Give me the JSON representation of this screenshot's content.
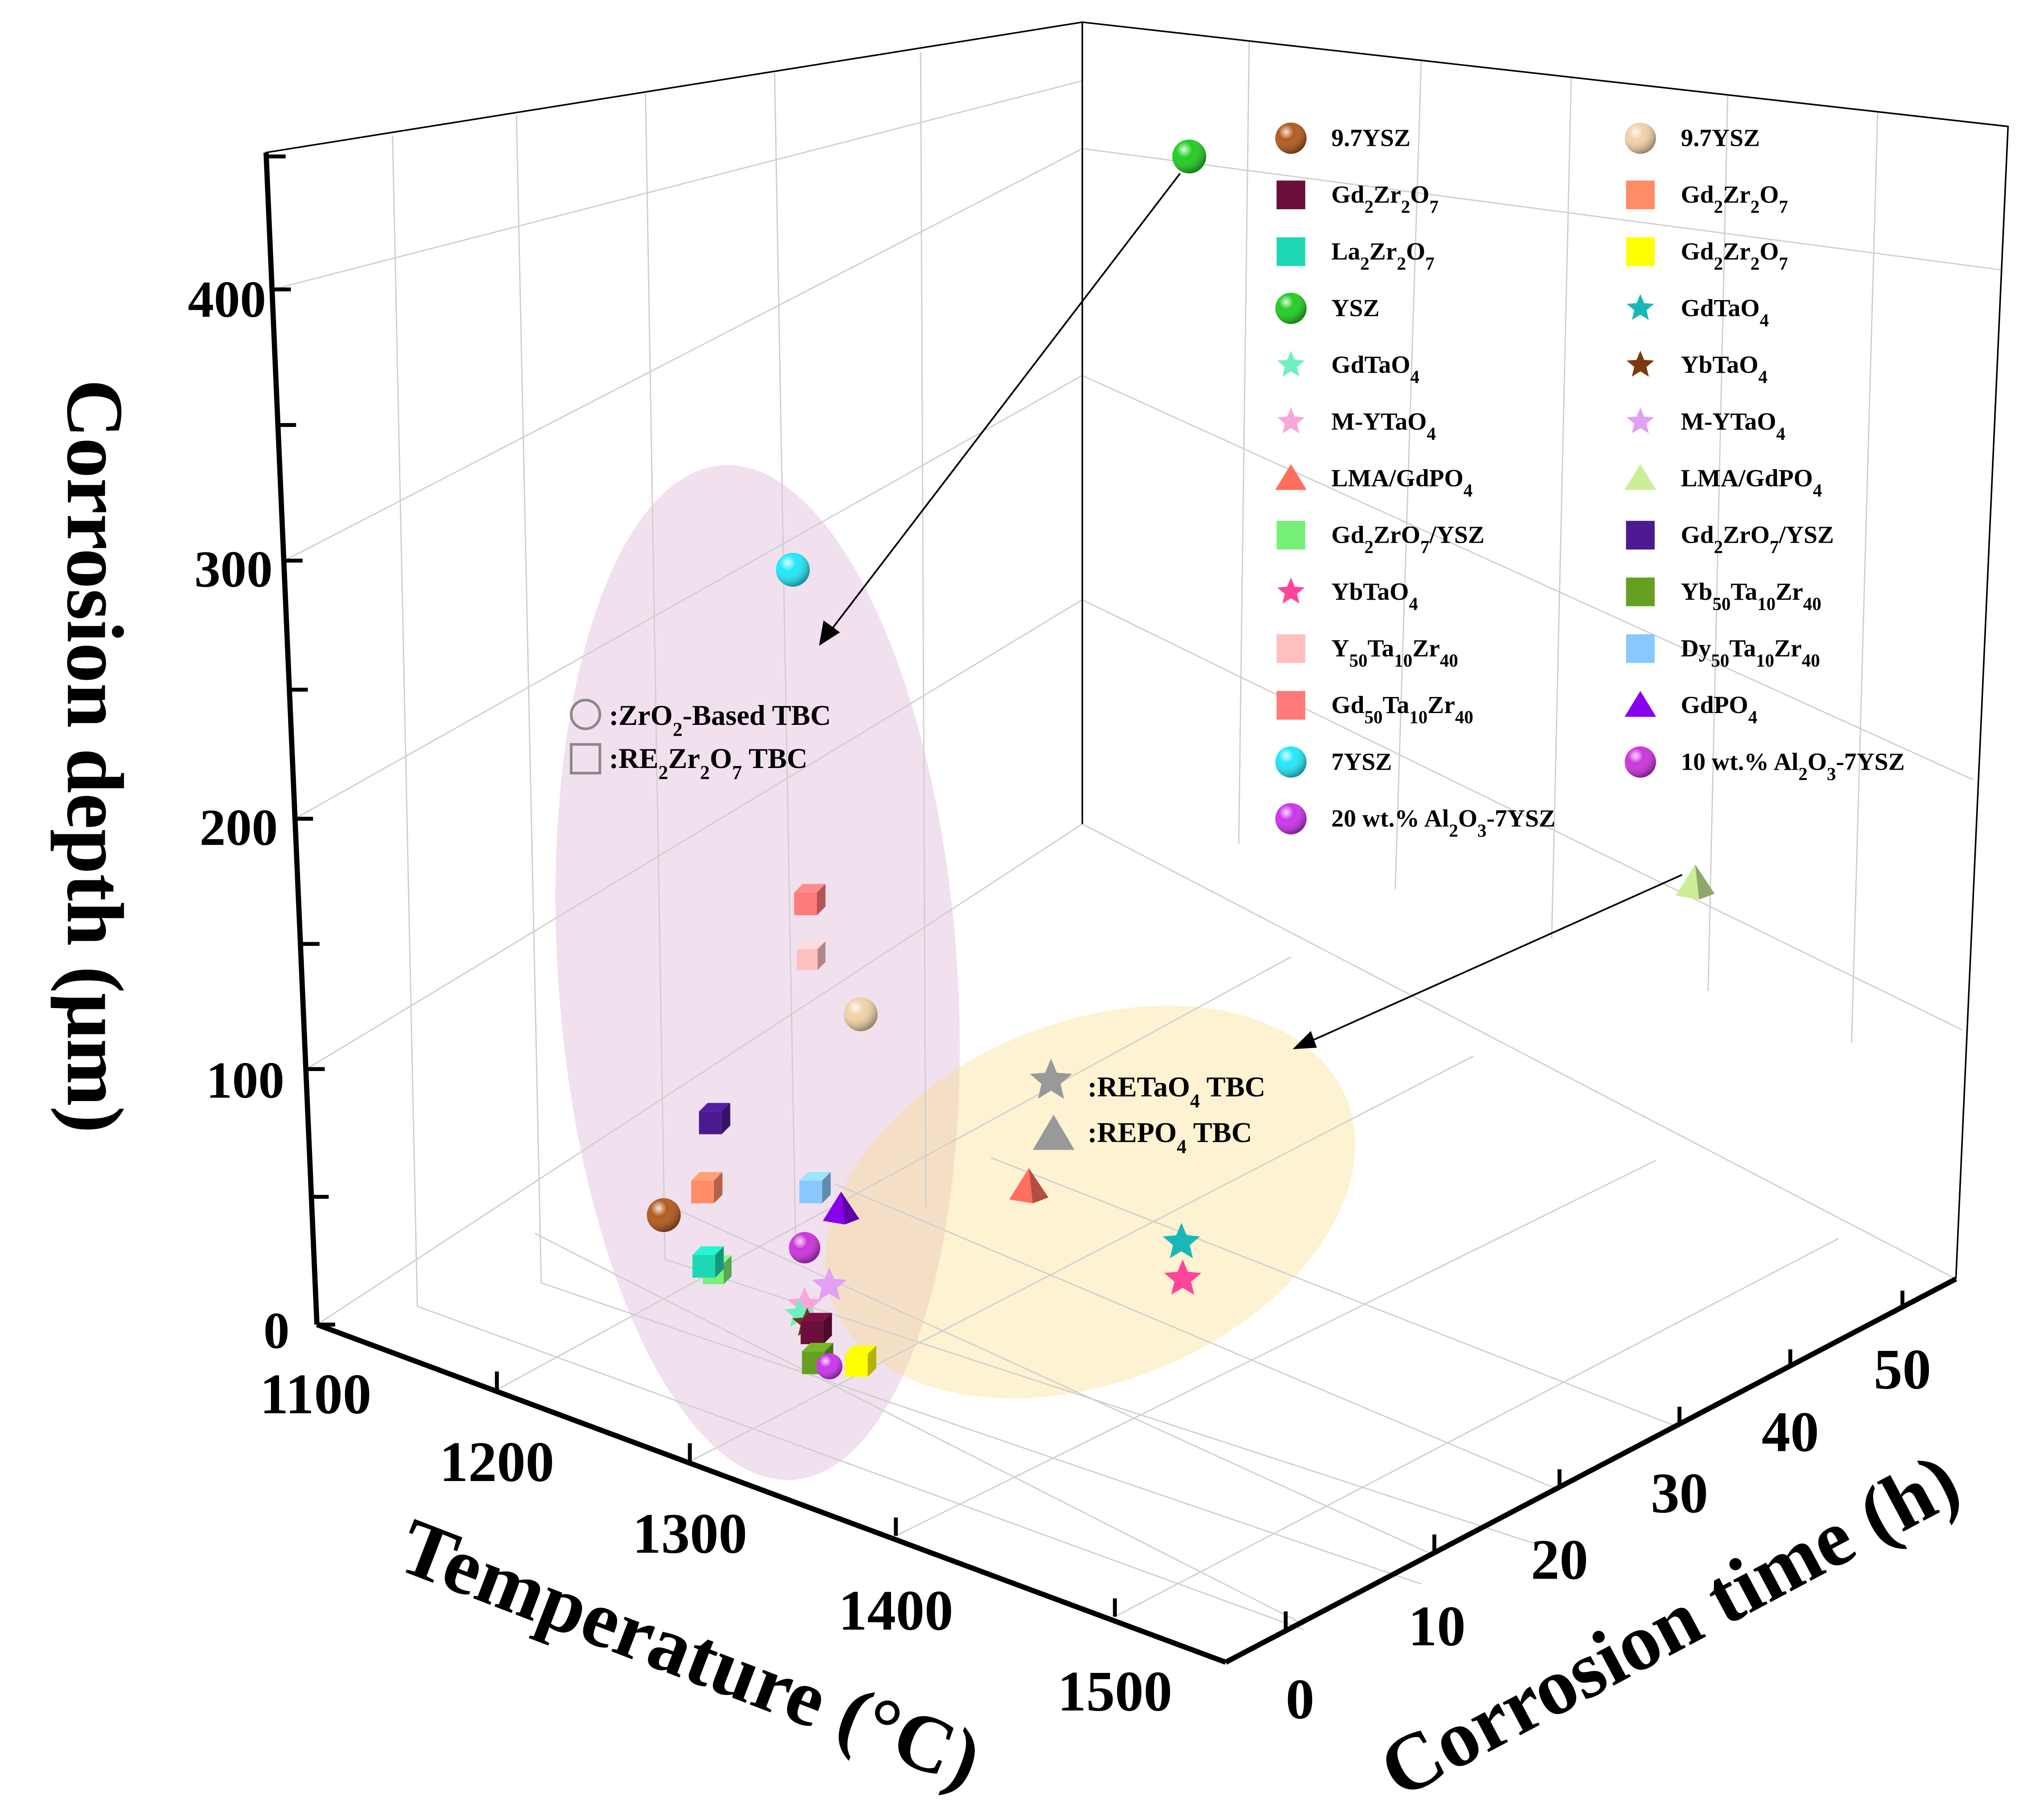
{
  "chart_data": {
    "type": "scatter",
    "axes": {
      "temperature": {
        "label": "Temperature (°C)",
        "ticks": [
          "1100",
          "1200",
          "1300",
          "1400",
          "1500"
        ],
        "range": [
          1100,
          1500
        ]
      },
      "time": {
        "label": "Corrosion time (h)",
        "ticks": [
          "0",
          "10",
          "20",
          "30",
          "40",
          "50"
        ],
        "range": [
          0,
          55
        ]
      },
      "depth": {
        "label": "Corrosion depth (μm)",
        "ticks": [
          "0",
          "100",
          "200",
          "300",
          "400"
        ],
        "range": [
          0,
          450
        ]
      }
    },
    "grid": true,
    "legend_position": "top-right",
    "legend": [
      {
        "label": "9.7YSZ",
        "color": "#b35a1f",
        "marker": "sphere"
      },
      {
        "label": "9.7YSZ",
        "color": "#f0d2a8",
        "marker": "sphere"
      },
      {
        "label": "Gd2Zr2O7",
        "color": "#6b0f3b",
        "marker": "square"
      },
      {
        "label": "Gd2Zr2O7",
        "color": "#ff8c66",
        "marker": "square"
      },
      {
        "label": "La2Zr2O7",
        "color": "#1ed8b4",
        "marker": "square"
      },
      {
        "label": "Gd2Zr2O7",
        "color": "#ffff00",
        "marker": "square"
      },
      {
        "label": "YSZ",
        "color": "#22cc22",
        "marker": "sphere"
      },
      {
        "label": "GdTaO4",
        "color": "#19b8b8",
        "marker": "star"
      },
      {
        "label": "GdTaO4",
        "color": "#6ff0c0",
        "marker": "star"
      },
      {
        "label": "YbTaO4",
        "color": "#7a3a10",
        "marker": "star"
      },
      {
        "label": "M-YTaO4",
        "color": "#f7a8d8",
        "marker": "star"
      },
      {
        "label": "M-YTaO4",
        "color": "#e2a0f5",
        "marker": "star"
      },
      {
        "label": "LMA/GdPO4",
        "color": "#ff6f5e",
        "marker": "triangle"
      },
      {
        "label": "LMA/GdPO4",
        "color": "#ccee99",
        "marker": "triangle"
      },
      {
        "label": "Gd2ZrO7/YSZ",
        "color": "#77f077",
        "marker": "square"
      },
      {
        "label": "Gd2ZrO7/YSZ",
        "color": "#4b1a90",
        "marker": "square"
      },
      {
        "label": "YbTaO4",
        "color": "#ff4499",
        "marker": "star"
      },
      {
        "label": "Yb50Ta10Zr40",
        "color": "#66a020",
        "marker": "square"
      },
      {
        "label": "Y50Ta10Zr40",
        "color": "#ffbfbf",
        "marker": "square"
      },
      {
        "label": "Dy50Ta10Zr40",
        "color": "#88c8ff",
        "marker": "square"
      },
      {
        "label": "Gd50Ta10Zr40",
        "color": "#ff7a7a",
        "marker": "square"
      },
      {
        "label": "GdPO4",
        "color": "#8800ee",
        "marker": "triangle"
      },
      {
        "label": "7YSZ",
        "color": "#22e8f8",
        "marker": "sphere"
      },
      {
        "label": "10 wt.% Al2O3-7YSZ",
        "color": "#cc33dd",
        "marker": "sphere"
      },
      {
        "label": "20 wt.% Al2O3-7YSZ",
        "color": "#cc33ee",
        "marker": "sphere"
      }
    ],
    "groups": [
      {
        "label": ":ZrO2-Based TBC",
        "marker": "circle-outline"
      },
      {
        "label": ":RE2Zr2O7 TBC",
        "marker": "square-outline"
      },
      {
        "label": ":RETaO4 TBC",
        "marker": "star"
      },
      {
        "label": ":REPO4 TBC",
        "marker": "triangle"
      }
    ]
  }
}
